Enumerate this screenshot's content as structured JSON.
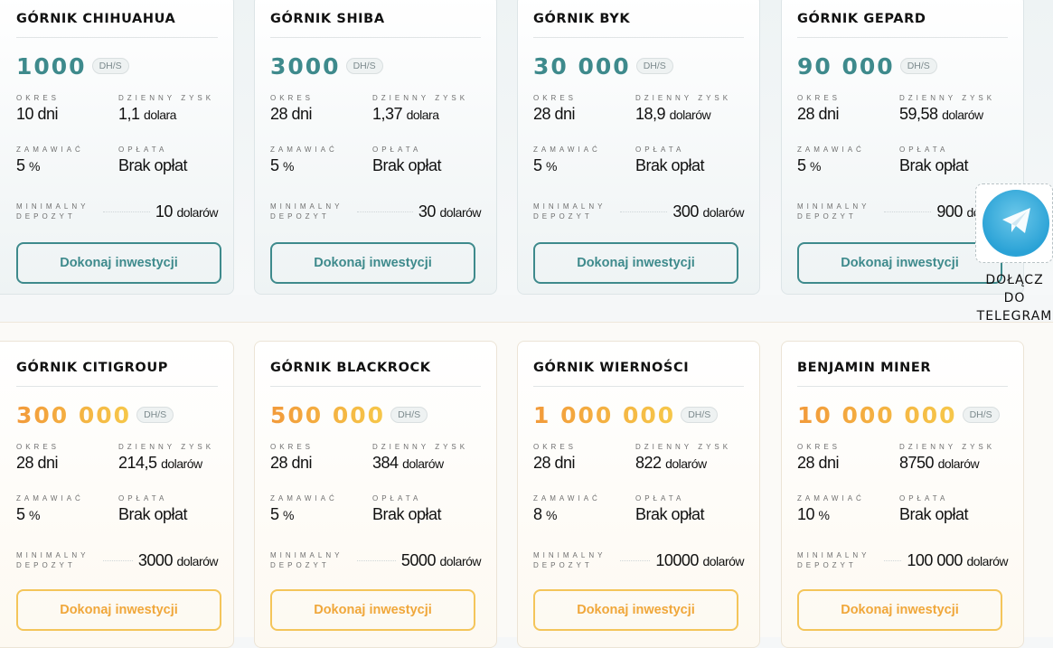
{
  "labels": {
    "period": "OKRES",
    "daily_profit": "DZIENNY ZYSK",
    "order": "ZAMAWIAĆ",
    "fee": "OPŁATA",
    "min_deposit_1": "MINIMALNY",
    "min_deposit_2": "DEPOZYT",
    "unit": "DH/S"
  },
  "row1": [
    {
      "title": "GÓRNIK CHIHUAHUA",
      "rate": "1000",
      "period": "10 dni",
      "profit_num": "1,1",
      "profit_unit": "dolara",
      "order_num": "5",
      "order_unit": "%",
      "fee": "Brak opłat",
      "deposit_num": "10",
      "deposit_unit": "dolarów",
      "button": "Dokonaj inwestycji"
    },
    {
      "title": "GÓRNIK SHIBA",
      "rate": "3000",
      "period": "28 dni",
      "profit_num": "1,37",
      "profit_unit": "dolara",
      "order_num": "5",
      "order_unit": "%",
      "fee": "Brak opłat",
      "deposit_num": "30",
      "deposit_unit": "dolarów",
      "button": "Dokonaj inwestycji"
    },
    {
      "title": "GÓRNIK BYK",
      "rate": "30 000",
      "period": "28 dni",
      "profit_num": "18,9",
      "profit_unit": "dolarów",
      "order_num": "5",
      "order_unit": "%",
      "fee": "Brak opłat",
      "deposit_num": "300",
      "deposit_unit": "dolarów",
      "button": "Dokonaj inwestycji"
    },
    {
      "title": "GÓRNIK GEPARD",
      "rate": "90 000",
      "period": "28 dni",
      "profit_num": "59,58",
      "profit_unit": "dolarów",
      "order_num": "5",
      "order_unit": "%",
      "fee": "Brak opłat",
      "deposit_num": "900",
      "deposit_unit": "dolarów",
      "button": "Dokonaj inwestycji"
    }
  ],
  "row2": [
    {
      "title": "GÓRNIK CITIGROUP",
      "rate": "300 000",
      "period": "28 dni",
      "profit_num": "214,5",
      "profit_unit": "dolarów",
      "order_num": "5",
      "order_unit": "%",
      "fee": "Brak opłat",
      "deposit_num": "3000",
      "deposit_unit": "dolarów",
      "button": "Dokonaj inwestycji"
    },
    {
      "title": "GÓRNIK BLACKROCK",
      "rate": "500 000",
      "period": "28 dni",
      "profit_num": "384",
      "profit_unit": "dolarów",
      "order_num": "5",
      "order_unit": "%",
      "fee": "Brak opłat",
      "deposit_num": "5000",
      "deposit_unit": "dolarów",
      "button": "Dokonaj inwestycji"
    },
    {
      "title": "GÓRNIK WIERNOŚCI",
      "rate": "1 000 000",
      "period": "28 dni",
      "profit_num": "822",
      "profit_unit": "dolarów",
      "order_num": "8",
      "order_unit": "%",
      "fee": "Brak opłat",
      "deposit_num": "10000",
      "deposit_unit": "dolarów",
      "button": "Dokonaj inwestycji"
    },
    {
      "title": "BENJAMIN MINER",
      "rate": "10 000 000",
      "period": "28 dni",
      "profit_num": "8750",
      "profit_unit": "dolarów",
      "order_num": "10",
      "order_unit": "%",
      "fee": "Brak opłat",
      "deposit_num": "100 000",
      "deposit_unit": "dolarów",
      "button": "Dokonaj inwestycji"
    }
  ],
  "telegram": {
    "line1": "DOŁĄCZ",
    "line2": "DO",
    "line3": "TELEGRAM",
    "icon": "telegram-icon"
  },
  "colors": {
    "teal": "#3e8a8c",
    "orange": "#f2aa3b",
    "gold_border": "#f4c55a"
  }
}
